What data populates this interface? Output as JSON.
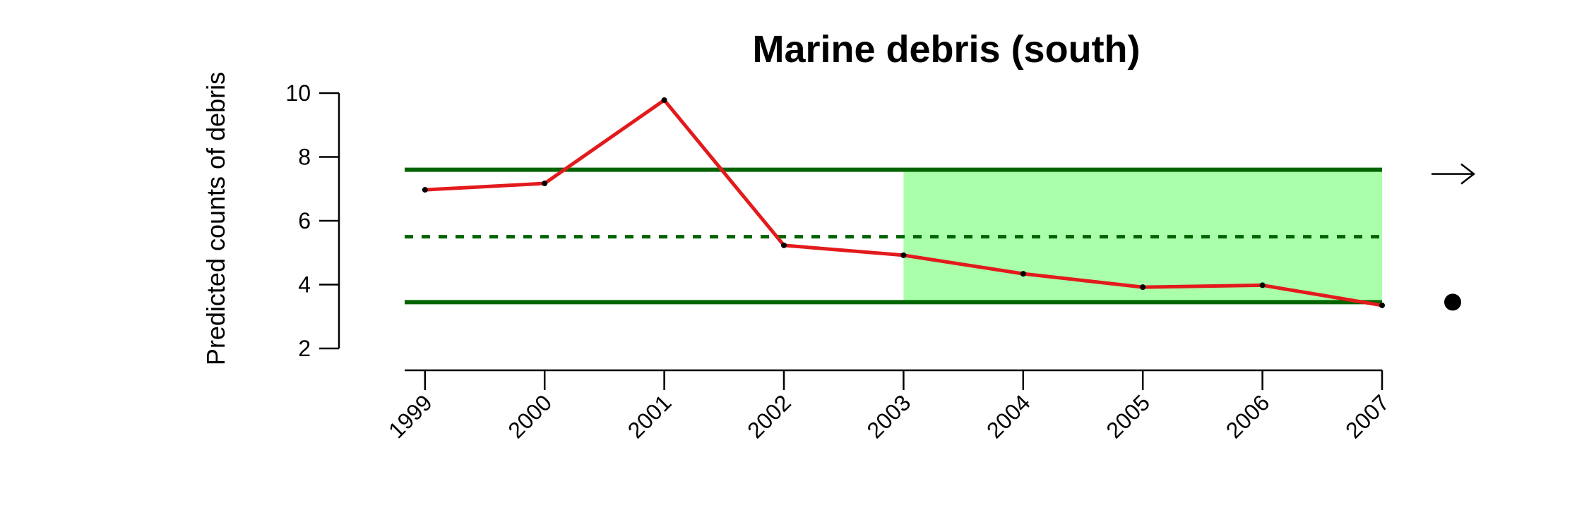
{
  "chart_data": {
    "type": "line",
    "title": "Marine debris (south)",
    "xlabel": "",
    "ylabel": "Predicted counts of debris",
    "x": [
      1999,
      2000,
      2001,
      2002,
      2003,
      2004,
      2005,
      2006,
      2007
    ],
    "x_tick_labels": [
      "1999",
      "2000",
      "2001",
      "2002",
      "2003",
      "2004",
      "2005",
      "2006",
      "2007"
    ],
    "y_ticks": [
      2,
      4,
      6,
      8,
      10
    ],
    "y_tick_labels": [
      "2",
      "4",
      "6",
      "8",
      "10"
    ],
    "xlim": [
      1998.83,
      2007
    ],
    "ylim": [
      2,
      10
    ],
    "series": [
      {
        "values": [
          6.97,
          7.17,
          9.78,
          5.23,
          4.92,
          4.34,
          3.92,
          3.98,
          3.35
        ],
        "color": "#e31a1c"
      }
    ],
    "reference_lines": {
      "upper": 7.6,
      "mean": 5.5,
      "lower": 3.45,
      "color": "#006400"
    },
    "shaded_region": {
      "x_start": 2003,
      "x_end": 2007,
      "y_low": 3.45,
      "y_high": 7.6,
      "color": "#aaffaa"
    },
    "grid": false,
    "trend_indicator": {
      "icon": "right-arrow-icon",
      "status_marker": "filled-circle-icon"
    }
  }
}
